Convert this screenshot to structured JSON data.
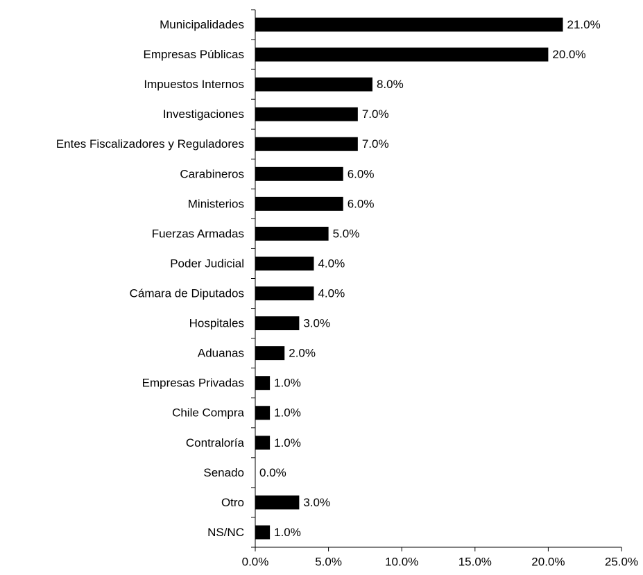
{
  "chart_data": {
    "type": "hbar",
    "categories": [
      "Municipalidades",
      "Empresas Públicas",
      "Impuestos Internos",
      "Investigaciones",
      "Entes Fiscalizadores y Reguladores",
      "Carabineros",
      "Ministerios",
      "Fuerzas Armadas",
      "Poder Judicial",
      "Cámara de Diputados",
      "Hospitales",
      "Aduanas",
      "Empresas Privadas",
      "Chile Compra",
      "Contraloría",
      "Senado",
      "Otro",
      "NS/NC"
    ],
    "values": [
      21,
      20,
      8,
      7,
      7,
      6,
      6,
      5,
      4,
      4,
      3,
      2,
      1,
      1,
      1,
      0,
      3,
      1
    ],
    "value_labels": [
      "21.0%",
      "20.0%",
      "8.0%",
      "7.0%",
      "7.0%",
      "6.0%",
      "6.0%",
      "5.0%",
      "4.0%",
      "4.0%",
      "3.0%",
      "2.0%",
      "1.0%",
      "1.0%",
      "1.0%",
      "0.0%",
      "3.0%",
      "1.0%"
    ],
    "color": "#000000",
    "xlim": [
      0,
      25
    ],
    "xticks": [
      {
        "value": 0,
        "label": "0.0%"
      },
      {
        "value": 5,
        "label": "5.0%"
      },
      {
        "value": 10,
        "label": "10.0%"
      },
      {
        "value": 15,
        "label": "15.0%"
      },
      {
        "value": 20,
        "label": "20.0%"
      },
      {
        "value": 25,
        "label": "25.0%"
      }
    ],
    "grid": false
  }
}
